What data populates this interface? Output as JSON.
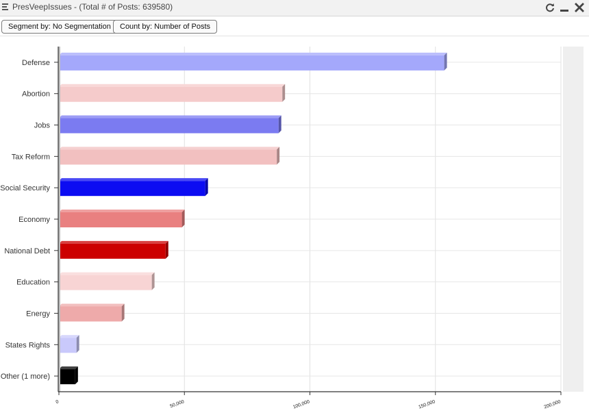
{
  "window": {
    "title": "PresVeepIssues - (Total # of Posts: 639580)",
    "icons": [
      "menu-icon",
      "refresh-icon",
      "minimize-icon",
      "close-icon"
    ]
  },
  "toolbar": {
    "segment_label": "Segment by: No Segmentation",
    "count_label": "Count by: Number of Posts"
  },
  "chart_data": {
    "type": "bar",
    "orientation": "horizontal",
    "title": "",
    "xlabel": "",
    "ylabel": "",
    "xlim": [
      0,
      200000
    ],
    "grid": true,
    "categories": [
      "Defense",
      "Abortion",
      "Jobs",
      "Tax Reform",
      "Social Security",
      "Economy",
      "National Debt",
      "Education",
      "Energy",
      "States Rights",
      "Other (1 more)"
    ],
    "values": [
      153500,
      89000,
      87500,
      86800,
      58300,
      49000,
      42500,
      37000,
      25000,
      7000,
      6500
    ],
    "colors": [
      "#a4a8fb",
      "#f5cbcb",
      "#7b7bf1",
      "#f2c0c0",
      "#0c0cf2",
      "#e98080",
      "#cc0000",
      "#f8d4d4",
      "#eeaaaa",
      "#c9c9fb",
      "#000000"
    ],
    "x_ticks": [
      {
        "value": 0,
        "label": "0"
      },
      {
        "value": 50000,
        "label": "50,000"
      },
      {
        "value": 100000,
        "label": "100,000"
      },
      {
        "value": 150000,
        "label": "150,000"
      },
      {
        "value": 200000,
        "label": "200,000"
      }
    ]
  }
}
